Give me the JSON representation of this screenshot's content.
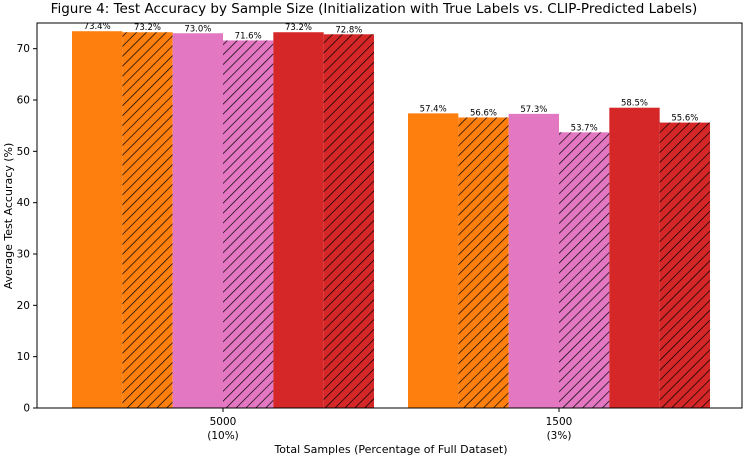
{
  "chart_data": {
    "type": "bar",
    "title": "Figure 4: Test Accuracy by Sample Size (Initialization with True Labels vs. CLIP-Predicted Labels)",
    "xlabel": "Total Samples (Percentage of Full Dataset)",
    "ylabel": "Average Test Accuracy (%)",
    "ylim": [
      0,
      75
    ],
    "yticks": [
      0,
      10,
      20,
      30,
      40,
      50,
      60,
      70
    ],
    "grid": false,
    "legend": "none",
    "categories": [
      {
        "line1": "5000",
        "line2": "(10%)"
      },
      {
        "line1": "1500",
        "line2": "(3%)"
      }
    ],
    "series": [
      {
        "color": "#ff7f0e",
        "hatch": false,
        "values": [
          73.4,
          57.4
        ],
        "labels": [
          "73.4%",
          "57.4%"
        ]
      },
      {
        "color": "#ff7f0e",
        "hatch": true,
        "values": [
          73.2,
          56.6
        ],
        "labels": [
          "73.2%",
          "56.6%"
        ]
      },
      {
        "color": "#e377c2",
        "hatch": false,
        "values": [
          73.0,
          57.3
        ],
        "labels": [
          "73.0%",
          "57.3%"
        ]
      },
      {
        "color": "#e377c2",
        "hatch": true,
        "values": [
          71.6,
          53.7
        ],
        "labels": [
          "71.6%",
          "53.7%"
        ]
      },
      {
        "color": "#d62728",
        "hatch": false,
        "values": [
          73.2,
          58.5
        ],
        "labels": [
          "73.2%",
          "58.5%"
        ]
      },
      {
        "color": "#d62728",
        "hatch": true,
        "values": [
          72.8,
          55.6
        ],
        "labels": [
          "72.8%",
          "55.6%"
        ]
      }
    ]
  }
}
